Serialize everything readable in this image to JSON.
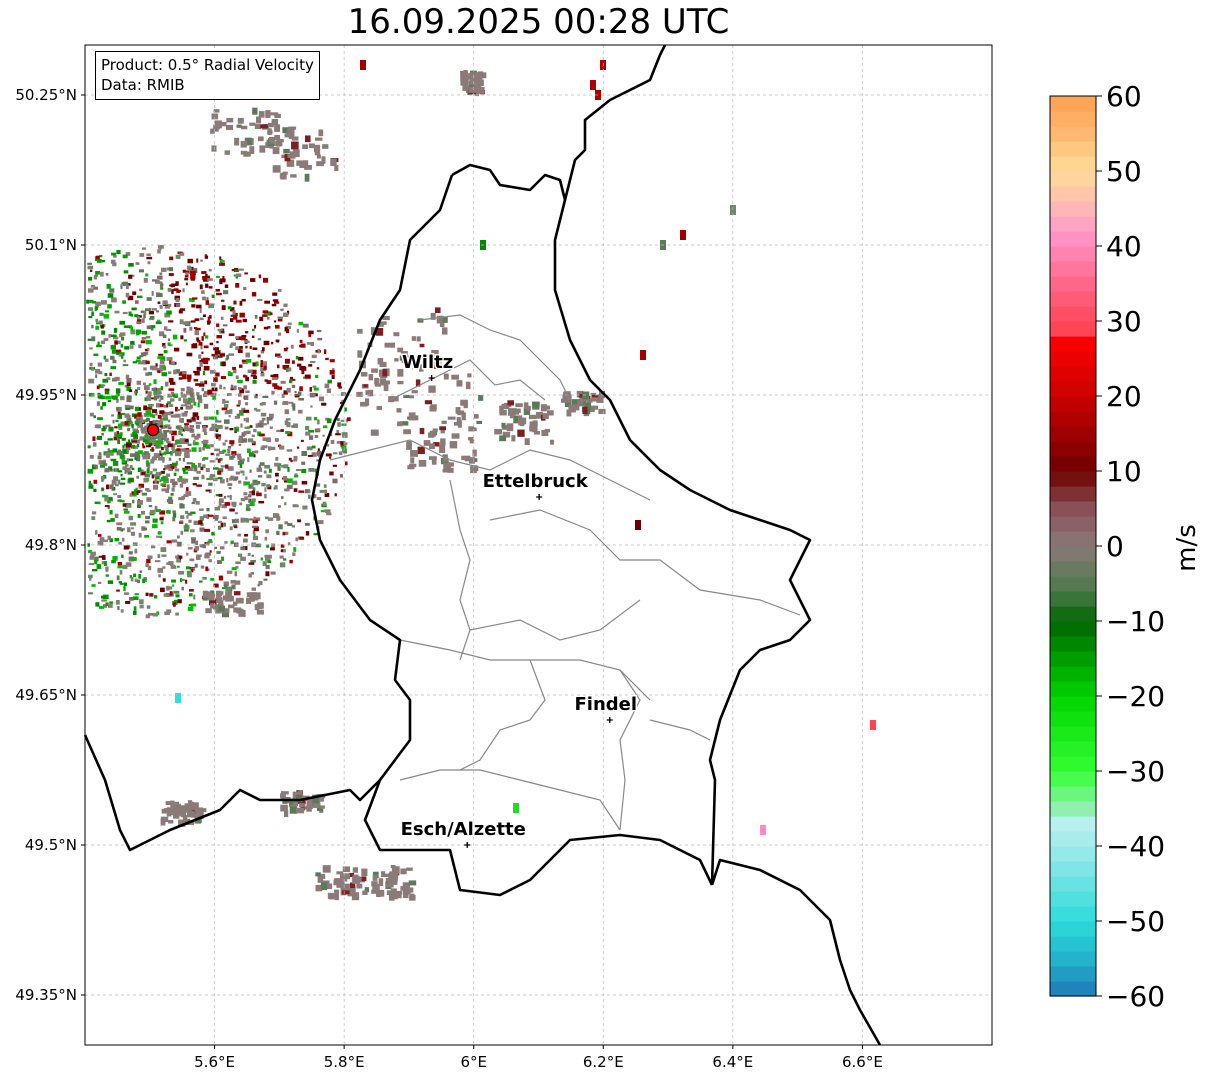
{
  "title": "16.09.2025 00:28 UTC",
  "info": {
    "product": "Product: 0.5° Radial Velocity",
    "data": "Data: RMIB"
  },
  "map": {
    "lon_range": [
      5.4,
      6.8
    ],
    "lat_range": [
      49.3,
      50.3
    ],
    "lon_ticks": [
      {
        "value": 5.6,
        "label": "5.6°E"
      },
      {
        "value": 5.8,
        "label": "5.8°E"
      },
      {
        "value": 6.0,
        "label": "6°E"
      },
      {
        "value": 6.2,
        "label": "6.2°E"
      },
      {
        "value": 6.4,
        "label": "6.4°E"
      },
      {
        "value": 6.6,
        "label": "6.6°E"
      }
    ],
    "lat_ticks": [
      {
        "value": 49.35,
        "label": "49.35°N"
      },
      {
        "value": 49.5,
        "label": "49.5°N"
      },
      {
        "value": 49.65,
        "label": "49.65°N"
      },
      {
        "value": 49.8,
        "label": "49.8°N"
      },
      {
        "value": 49.95,
        "label": "49.95°N"
      },
      {
        "value": 50.1,
        "label": "50.1°N"
      },
      {
        "value": 50.25,
        "label": "50.25°N"
      }
    ],
    "grid": true,
    "radar_site": {
      "lon": 5.505,
      "lat": 49.915,
      "color": "#ff0000"
    },
    "cities": [
      {
        "name": "Wiltz",
        "lon": 5.935,
        "lat": 49.967
      },
      {
        "name": "Ettelbruck",
        "lon": 6.101,
        "lat": 49.848
      },
      {
        "name": "Findel",
        "lon": 6.21,
        "lat": 49.625
      },
      {
        "name": "Esch/Alzette",
        "lon": 5.99,
        "lat": 49.5
      }
    ]
  },
  "colorbar": {
    "label": "m/s",
    "min": -60,
    "max": 60,
    "ticks": [
      {
        "value": 60,
        "label": "60"
      },
      {
        "value": 50,
        "label": "50"
      },
      {
        "value": 40,
        "label": "40"
      },
      {
        "value": 30,
        "label": "30"
      },
      {
        "value": 20,
        "label": "20"
      },
      {
        "value": 10,
        "label": "10"
      },
      {
        "value": 0,
        "label": "0"
      },
      {
        "value": -10,
        "label": "−10"
      },
      {
        "value": -20,
        "label": "−20"
      },
      {
        "value": -30,
        "label": "−30"
      },
      {
        "value": -40,
        "label": "−40"
      },
      {
        "value": -50,
        "label": "−50"
      },
      {
        "value": -60,
        "label": "−60"
      }
    ],
    "stops": [
      {
        "v": -60,
        "c": "#1f77b4"
      },
      {
        "v": -55,
        "c": "#22b4cc"
      },
      {
        "v": -50,
        "c": "#2ddcdc"
      },
      {
        "v": -40,
        "c": "#a0eaea"
      },
      {
        "v": -37,
        "c": "#b8f0f0"
      },
      {
        "v": -35,
        "c": "#90f0b0"
      },
      {
        "v": -30,
        "c": "#33ff33"
      },
      {
        "v": -20,
        "c": "#00d400"
      },
      {
        "v": -10,
        "c": "#006600"
      },
      {
        "v": -6,
        "c": "#4a7a4a"
      },
      {
        "v": 0,
        "c": "#8a7a78"
      },
      {
        "v": 5,
        "c": "#8a5058"
      },
      {
        "v": 8,
        "c": "#7a2020"
      },
      {
        "v": 10,
        "c": "#700000"
      },
      {
        "v": 20,
        "c": "#cc0000"
      },
      {
        "v": 28,
        "c": "#ff0000"
      },
      {
        "v": 29,
        "c": "#ff4455"
      },
      {
        "v": 35,
        "c": "#ff6688"
      },
      {
        "v": 42,
        "c": "#ff99cc"
      },
      {
        "v": 45,
        "c": "#ffb6b6"
      },
      {
        "v": 50,
        "c": "#ffdd99"
      },
      {
        "v": 55,
        "c": "#ffb870"
      },
      {
        "v": 60,
        "c": "#ffa050"
      }
    ]
  }
}
